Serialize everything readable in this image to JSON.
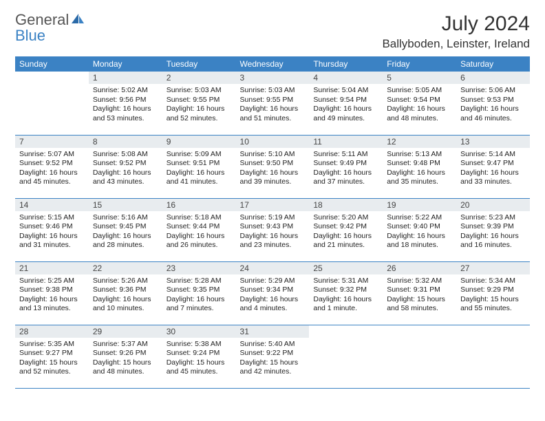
{
  "brand": {
    "word1": "General",
    "word2": "Blue"
  },
  "title": "July 2024",
  "location": "Ballyboden, Leinster, Ireland",
  "colors": {
    "header_bg": "#3b82c4",
    "header_text": "#ffffff",
    "daynum_bg": "#e8ecef",
    "rule": "#3b82c4",
    "brand_blue": "#3b82c4"
  },
  "weekdays": [
    "Sunday",
    "Monday",
    "Tuesday",
    "Wednesday",
    "Thursday",
    "Friday",
    "Saturday"
  ],
  "weeks": [
    [
      {
        "n": "",
        "sr": "",
        "ss": "",
        "dl": "",
        "empty": true
      },
      {
        "n": "1",
        "sr": "Sunrise: 5:02 AM",
        "ss": "Sunset: 9:56 PM",
        "dl": "Daylight: 16 hours and 53 minutes."
      },
      {
        "n": "2",
        "sr": "Sunrise: 5:03 AM",
        "ss": "Sunset: 9:55 PM",
        "dl": "Daylight: 16 hours and 52 minutes."
      },
      {
        "n": "3",
        "sr": "Sunrise: 5:03 AM",
        "ss": "Sunset: 9:55 PM",
        "dl": "Daylight: 16 hours and 51 minutes."
      },
      {
        "n": "4",
        "sr": "Sunrise: 5:04 AM",
        "ss": "Sunset: 9:54 PM",
        "dl": "Daylight: 16 hours and 49 minutes."
      },
      {
        "n": "5",
        "sr": "Sunrise: 5:05 AM",
        "ss": "Sunset: 9:54 PM",
        "dl": "Daylight: 16 hours and 48 minutes."
      },
      {
        "n": "6",
        "sr": "Sunrise: 5:06 AM",
        "ss": "Sunset: 9:53 PM",
        "dl": "Daylight: 16 hours and 46 minutes."
      }
    ],
    [
      {
        "n": "7",
        "sr": "Sunrise: 5:07 AM",
        "ss": "Sunset: 9:52 PM",
        "dl": "Daylight: 16 hours and 45 minutes."
      },
      {
        "n": "8",
        "sr": "Sunrise: 5:08 AM",
        "ss": "Sunset: 9:52 PM",
        "dl": "Daylight: 16 hours and 43 minutes."
      },
      {
        "n": "9",
        "sr": "Sunrise: 5:09 AM",
        "ss": "Sunset: 9:51 PM",
        "dl": "Daylight: 16 hours and 41 minutes."
      },
      {
        "n": "10",
        "sr": "Sunrise: 5:10 AM",
        "ss": "Sunset: 9:50 PM",
        "dl": "Daylight: 16 hours and 39 minutes."
      },
      {
        "n": "11",
        "sr": "Sunrise: 5:11 AM",
        "ss": "Sunset: 9:49 PM",
        "dl": "Daylight: 16 hours and 37 minutes."
      },
      {
        "n": "12",
        "sr": "Sunrise: 5:13 AM",
        "ss": "Sunset: 9:48 PM",
        "dl": "Daylight: 16 hours and 35 minutes."
      },
      {
        "n": "13",
        "sr": "Sunrise: 5:14 AM",
        "ss": "Sunset: 9:47 PM",
        "dl": "Daylight: 16 hours and 33 minutes."
      }
    ],
    [
      {
        "n": "14",
        "sr": "Sunrise: 5:15 AM",
        "ss": "Sunset: 9:46 PM",
        "dl": "Daylight: 16 hours and 31 minutes."
      },
      {
        "n": "15",
        "sr": "Sunrise: 5:16 AM",
        "ss": "Sunset: 9:45 PM",
        "dl": "Daylight: 16 hours and 28 minutes."
      },
      {
        "n": "16",
        "sr": "Sunrise: 5:18 AM",
        "ss": "Sunset: 9:44 PM",
        "dl": "Daylight: 16 hours and 26 minutes."
      },
      {
        "n": "17",
        "sr": "Sunrise: 5:19 AM",
        "ss": "Sunset: 9:43 PM",
        "dl": "Daylight: 16 hours and 23 minutes."
      },
      {
        "n": "18",
        "sr": "Sunrise: 5:20 AM",
        "ss": "Sunset: 9:42 PM",
        "dl": "Daylight: 16 hours and 21 minutes."
      },
      {
        "n": "19",
        "sr": "Sunrise: 5:22 AM",
        "ss": "Sunset: 9:40 PM",
        "dl": "Daylight: 16 hours and 18 minutes."
      },
      {
        "n": "20",
        "sr": "Sunrise: 5:23 AM",
        "ss": "Sunset: 9:39 PM",
        "dl": "Daylight: 16 hours and 16 minutes."
      }
    ],
    [
      {
        "n": "21",
        "sr": "Sunrise: 5:25 AM",
        "ss": "Sunset: 9:38 PM",
        "dl": "Daylight: 16 hours and 13 minutes."
      },
      {
        "n": "22",
        "sr": "Sunrise: 5:26 AM",
        "ss": "Sunset: 9:36 PM",
        "dl": "Daylight: 16 hours and 10 minutes."
      },
      {
        "n": "23",
        "sr": "Sunrise: 5:28 AM",
        "ss": "Sunset: 9:35 PM",
        "dl": "Daylight: 16 hours and 7 minutes."
      },
      {
        "n": "24",
        "sr": "Sunrise: 5:29 AM",
        "ss": "Sunset: 9:34 PM",
        "dl": "Daylight: 16 hours and 4 minutes."
      },
      {
        "n": "25",
        "sr": "Sunrise: 5:31 AM",
        "ss": "Sunset: 9:32 PM",
        "dl": "Daylight: 16 hours and 1 minute."
      },
      {
        "n": "26",
        "sr": "Sunrise: 5:32 AM",
        "ss": "Sunset: 9:31 PM",
        "dl": "Daylight: 15 hours and 58 minutes."
      },
      {
        "n": "27",
        "sr": "Sunrise: 5:34 AM",
        "ss": "Sunset: 9:29 PM",
        "dl": "Daylight: 15 hours and 55 minutes."
      }
    ],
    [
      {
        "n": "28",
        "sr": "Sunrise: 5:35 AM",
        "ss": "Sunset: 9:27 PM",
        "dl": "Daylight: 15 hours and 52 minutes."
      },
      {
        "n": "29",
        "sr": "Sunrise: 5:37 AM",
        "ss": "Sunset: 9:26 PM",
        "dl": "Daylight: 15 hours and 48 minutes."
      },
      {
        "n": "30",
        "sr": "Sunrise: 5:38 AM",
        "ss": "Sunset: 9:24 PM",
        "dl": "Daylight: 15 hours and 45 minutes."
      },
      {
        "n": "31",
        "sr": "Sunrise: 5:40 AM",
        "ss": "Sunset: 9:22 PM",
        "dl": "Daylight: 15 hours and 42 minutes."
      },
      {
        "n": "",
        "sr": "",
        "ss": "",
        "dl": "",
        "empty": true
      },
      {
        "n": "",
        "sr": "",
        "ss": "",
        "dl": "",
        "empty": true
      },
      {
        "n": "",
        "sr": "",
        "ss": "",
        "dl": "",
        "empty": true
      }
    ]
  ]
}
